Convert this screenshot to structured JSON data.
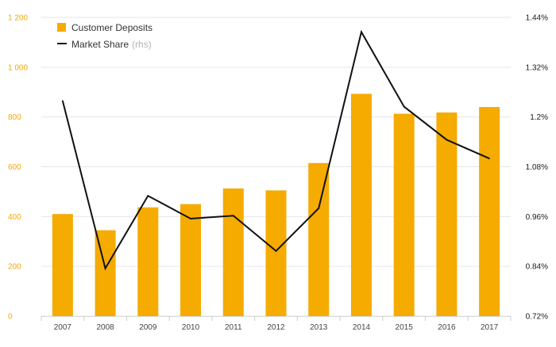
{
  "chart_data": {
    "type": "bar",
    "categories": [
      "2007",
      "2008",
      "2009",
      "2010",
      "2011",
      "2012",
      "2013",
      "2014",
      "2015",
      "2016",
      "2017"
    ],
    "series": [
      {
        "name": "Customer Deposits",
        "kind": "bar",
        "axis": "left",
        "color": "#f5ab00",
        "values": [
          410,
          345,
          437,
          450,
          513,
          505,
          615,
          893,
          813,
          818,
          840
        ]
      },
      {
        "name": "Market Share",
        "suffix": "(rhs)",
        "kind": "line",
        "axis": "right",
        "color": "#111111",
        "values": [
          1.239,
          0.835,
          1.01,
          0.955,
          0.962,
          0.877,
          0.98,
          1.405,
          1.225,
          1.145,
          1.1
        ]
      }
    ],
    "left_axis": {
      "ylim": [
        0,
        1200
      ],
      "ticks": [
        0,
        200,
        400,
        600,
        800,
        1000,
        1200
      ],
      "tick_labels": [
        "0",
        "200",
        "400",
        "600",
        "800",
        "1 000",
        "1 200"
      ],
      "color": "#f5a800"
    },
    "right_axis": {
      "ylim": [
        0.72,
        1.44
      ],
      "ticks": [
        0.72,
        0.84,
        0.96,
        1.08,
        1.2,
        1.32,
        1.44
      ],
      "tick_labels": [
        "0.72%",
        "0.84%",
        "0.96%",
        "1.08%",
        "1.2%",
        "1.32%",
        "1.44%"
      ]
    },
    "legend": {
      "placement": "top-left",
      "entries": [
        {
          "label": "Customer Deposits",
          "suffix": ""
        },
        {
          "label": "Market Share",
          "suffix": "(rhs)"
        }
      ]
    },
    "grid": true
  }
}
